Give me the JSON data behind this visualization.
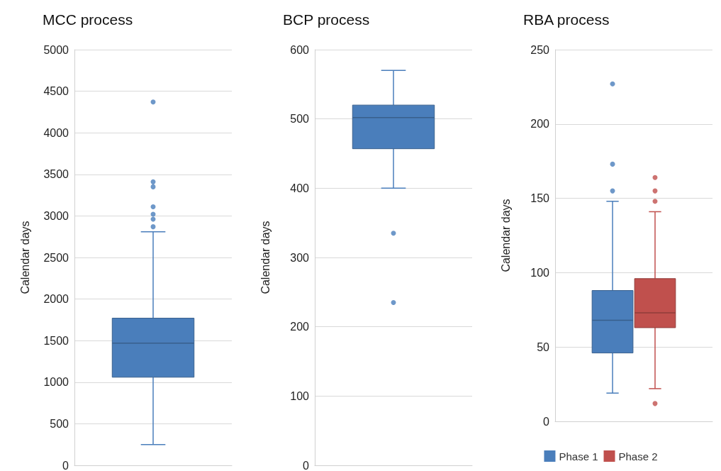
{
  "chart_data": [
    {
      "type": "box",
      "title": "MCC process",
      "ylabel": "Calendar days",
      "categories": [
        null
      ],
      "ylim": [
        0,
        5000
      ],
      "yticks": [
        0,
        500,
        1000,
        1500,
        2000,
        2500,
        3000,
        3500,
        4000,
        4500,
        5000
      ],
      "grid": "y",
      "series": [
        {
          "color": "#4a7ebb",
          "boxes": [
            {
              "low": 250,
              "q1": 1060,
              "median": 1470,
              "q3": 1770,
              "high": 2810,
              "outliers": [
                2870,
                2960,
                3020,
                3110,
                3350,
                3410,
                4370
              ]
            }
          ]
        }
      ]
    },
    {
      "type": "box",
      "title": "BCP process",
      "ylabel": "Calendar days",
      "categories": [
        null
      ],
      "ylim": [
        0,
        600
      ],
      "yticks": [
        0,
        100,
        200,
        300,
        400,
        500,
        600
      ],
      "grid": "y",
      "series": [
        {
          "color": "#4a7ebb",
          "boxes": [
            {
              "low": 400,
              "q1": 457,
              "median": 502,
              "q3": 520,
              "high": 570,
              "outliers": [
                235,
                335
              ]
            }
          ]
        }
      ]
    },
    {
      "type": "box",
      "title": "RBA process",
      "ylabel": "Calendar days",
      "categories": [
        null
      ],
      "ylim": [
        0,
        250
      ],
      "yticks": [
        0,
        50,
        100,
        150,
        200,
        250
      ],
      "grid": "y",
      "legend": "bottom",
      "series": [
        {
          "name": "Phase 1",
          "color": "#4a7ebb",
          "boxes": [
            {
              "low": 19,
              "q1": 46,
              "median": 68,
              "q3": 88,
              "high": 148,
              "outliers": [
                155,
                173,
                227
              ]
            }
          ]
        },
        {
          "name": "Phase 2",
          "color": "#c0504d",
          "boxes": [
            {
              "low": 22,
              "q1": 63,
              "median": 73,
              "q3": 96,
              "high": 141,
              "outliers": [
                12,
                148,
                155,
                164
              ]
            }
          ]
        }
      ]
    }
  ]
}
